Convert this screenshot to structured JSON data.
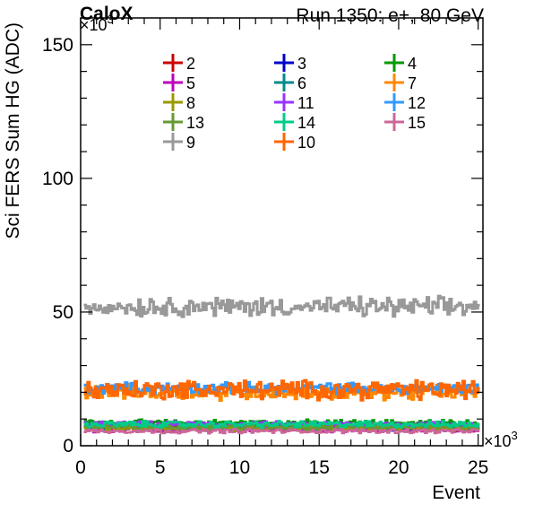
{
  "header": {
    "brand": "CaloX",
    "run_label": "Run 1350: e+, 80 GeV",
    "y_multiplier": "×10",
    "y_multiplier_exp": "3",
    "x_multiplier": "×10",
    "x_multiplier_exp": "3"
  },
  "chart_data": {
    "type": "line",
    "xlabel": "Event",
    "ylabel": "Sci FERS Sum HG (ADC)",
    "xlim": [
      0,
      25.3
    ],
    "ylim": [
      0,
      160
    ],
    "x_ticks": [
      0,
      5,
      10,
      15,
      20,
      25
    ],
    "y_ticks": [
      0,
      50,
      100,
      150
    ],
    "x_tick_labels": [
      "0",
      "5",
      "10",
      "15",
      "20",
      "25"
    ],
    "y_tick_labels": [
      "0",
      "50",
      "100",
      "150"
    ],
    "x_range": [
      0.2,
      25.1
    ],
    "grid": false,
    "legend_position": "top",
    "series": [
      {
        "name": "2",
        "color": "#cc0000",
        "level": 7.5,
        "noise": 0.8
      },
      {
        "name": "3",
        "color": "#0000cc",
        "level": 6.5,
        "noise": 0.7
      },
      {
        "name": "4",
        "color": "#009900",
        "level": 8.5,
        "noise": 0.9
      },
      {
        "name": "5",
        "color": "#bb00bb",
        "level": 6.0,
        "noise": 0.7
      },
      {
        "name": "6",
        "color": "#008b8b",
        "level": 7.0,
        "noise": 0.8
      },
      {
        "name": "7",
        "color": "#ff8800",
        "level": 20.0,
        "noise": 2.0
      },
      {
        "name": "8",
        "color": "#999900",
        "level": 6.5,
        "noise": 0.7
      },
      {
        "name": "11",
        "color": "#9933ff",
        "level": 8.0,
        "noise": 0.8
      },
      {
        "name": "12",
        "color": "#3399ff",
        "level": 21.5,
        "noise": 1.5
      },
      {
        "name": "13",
        "color": "#669933",
        "level": 7.0,
        "noise": 0.8
      },
      {
        "name": "14",
        "color": "#00cc88",
        "level": 8.0,
        "noise": 0.9
      },
      {
        "name": "15",
        "color": "#cc6699",
        "level": 5.5,
        "noise": 0.6
      },
      {
        "name": "9",
        "color": "#999999",
        "level": 52.0,
        "noise": 2.6
      },
      {
        "name": "10",
        "color": "#ff6600",
        "level": 21.0,
        "noise": 2.6
      }
    ],
    "legend_grid": [
      [
        "2",
        "3",
        "4"
      ],
      [
        "5",
        "6",
        "7"
      ],
      [
        "8",
        "11",
        "12"
      ],
      [
        "13",
        "14",
        "15"
      ],
      [
        "9",
        "10"
      ]
    ]
  }
}
